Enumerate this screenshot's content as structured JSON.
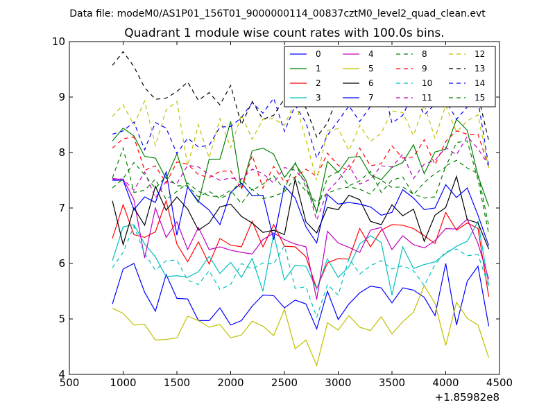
{
  "header": {
    "data_file": "Data file: modeM0/AS1P01_156T01_9000000114_00837cztM0_level2_quad_clean.evt"
  },
  "chart_data": {
    "type": "line",
    "title": "Quadrant 1 module wise count rates with 100.0s bins.",
    "xlabel": "",
    "ylabel": "",
    "x_offset_label": "+1.85982e8",
    "xlim": [
      500,
      4500
    ],
    "ylim": [
      4,
      10
    ],
    "x_ticks": [
      500,
      1000,
      1500,
      2000,
      2500,
      3000,
      3500,
      4000,
      4500
    ],
    "y_ticks": [
      4,
      5,
      6,
      7,
      8,
      9,
      10
    ],
    "legend_position": "top-right",
    "legend_columns": 4,
    "x": [
      900,
      1000,
      1100,
      1200,
      1300,
      1400,
      1500,
      1600,
      1700,
      1800,
      1900,
      2000,
      2100,
      2200,
      2300,
      2400,
      2500,
      2600,
      2700,
      2800,
      2900,
      3000,
      3100,
      3200,
      3300,
      3400,
      3500,
      3600,
      3700,
      3800,
      3900,
      4000,
      4100,
      4200,
      4300,
      4400
    ],
    "series": [
      {
        "name": "0",
        "color": "#0000ff",
        "dash": "solid",
        "values": [
          5.27,
          5.9,
          6.0,
          5.48,
          5.14,
          5.8,
          5.37,
          5.36,
          4.97,
          4.97,
          5.2,
          4.89,
          4.97,
          5.23,
          5.43,
          5.42,
          5.2,
          5.34,
          5.27,
          4.82,
          5.5,
          4.99,
          5.27,
          5.47,
          5.59,
          5.56,
          5.29,
          5.56,
          5.52,
          5.39,
          5.06,
          6.0,
          4.89,
          5.68,
          5.95,
          4.87
        ]
      },
      {
        "name": "1",
        "color": "#008000",
        "dash": "solid",
        "values": [
          8.21,
          8.44,
          8.3,
          7.93,
          7.9,
          7.53,
          7.98,
          7.38,
          7.1,
          7.88,
          7.88,
          8.56,
          7.35,
          8.03,
          8.08,
          7.97,
          7.55,
          7.8,
          7.5,
          6.92,
          7.84,
          7.64,
          7.91,
          7.93,
          7.6,
          7.51,
          7.73,
          7.82,
          8.14,
          7.62,
          8.01,
          8.06,
          8.6,
          8.4,
          7.58,
          7.03
        ]
      },
      {
        "name": "2",
        "color": "#ff0000",
        "dash": "solid",
        "values": [
          6.45,
          7.06,
          6.52,
          6.47,
          6.57,
          7.13,
          6.35,
          6.03,
          6.39,
          5.99,
          6.45,
          6.33,
          6.3,
          6.76,
          6.3,
          6.7,
          6.31,
          6.3,
          6.12,
          5.55,
          6.01,
          6.09,
          6.08,
          6.63,
          6.3,
          6.6,
          6.7,
          6.69,
          6.63,
          6.5,
          6.36,
          6.92,
          6.6,
          6.73,
          6.63,
          5.4
        ]
      },
      {
        "name": "3",
        "color": "#00bfbf",
        "dash": "solid",
        "values": [
          6.05,
          6.66,
          6.7,
          6.35,
          6.12,
          5.76,
          5.78,
          5.75,
          5.85,
          6.13,
          5.82,
          6.02,
          5.75,
          6.09,
          5.5,
          6.53,
          5.7,
          5.97,
          5.95,
          5.54,
          6.08,
          5.75,
          5.94,
          6.35,
          6.5,
          6.38,
          5.43,
          6.3,
          5.91,
          5.98,
          6.03,
          6.18,
          6.31,
          6.4,
          6.76,
          5.6
        ]
      },
      {
        "name": "4",
        "color": "#bf00bf",
        "dash": "solid",
        "values": [
          7.52,
          7.52,
          7.15,
          6.1,
          7.0,
          6.47,
          6.75,
          6.25,
          6.65,
          6.25,
          6.3,
          6.24,
          6.2,
          6.17,
          6.43,
          6.55,
          6.43,
          6.35,
          6.3,
          5.35,
          6.58,
          6.37,
          6.29,
          6.2,
          6.6,
          6.65,
          6.25,
          6.5,
          6.34,
          6.28,
          6.41,
          6.63,
          6.62,
          6.8,
          6.36,
          5.72
        ]
      },
      {
        "name": "5",
        "color": "#bfbf00",
        "dash": "solid",
        "values": [
          5.19,
          5.1,
          4.89,
          4.9,
          4.62,
          4.63,
          4.66,
          5.05,
          4.97,
          4.85,
          4.9,
          4.66,
          4.71,
          4.96,
          4.87,
          4.7,
          5.17,
          4.46,
          4.62,
          4.16,
          4.93,
          4.8,
          5.06,
          4.85,
          4.79,
          5.04,
          4.73,
          4.95,
          5.12,
          5.6,
          5.28,
          4.52,
          5.3,
          5.01,
          4.89,
          4.3
        ]
      },
      {
        "name": "6",
        "color": "#000000",
        "dash": "solid",
        "values": [
          7.13,
          6.34,
          7.0,
          6.69,
          7.39,
          6.96,
          7.2,
          6.98,
          6.6,
          6.73,
          7.02,
          7.07,
          6.85,
          6.73,
          6.56,
          6.6,
          6.52,
          7.52,
          6.75,
          6.55,
          7.01,
          6.97,
          7.23,
          7.15,
          6.76,
          6.7,
          7.06,
          6.86,
          6.98,
          6.4,
          6.87,
          7.01,
          7.57,
          6.79,
          6.73,
          6.26
        ]
      },
      {
        "name": "7",
        "color": "#0000ff",
        "dash": "solid",
        "values": [
          7.5,
          7.5,
          6.97,
          7.2,
          7.1,
          7.65,
          6.51,
          7.38,
          7.12,
          6.96,
          6.7,
          7.28,
          7.45,
          7.22,
          7.23,
          6.43,
          7.4,
          7.18,
          6.66,
          6.37,
          7.24,
          7.07,
          7.1,
          7.07,
          7.02,
          6.87,
          6.92,
          7.33,
          7.18,
          6.97,
          7.0,
          7.42,
          7.19,
          7.36,
          6.87,
          6.32
        ]
      },
      {
        "name": "8",
        "color": "#008000",
        "dash": "dashed",
        "values": [
          7.54,
          8.08,
          7.28,
          7.32,
          7.52,
          7.15,
          7.3,
          7.45,
          7.3,
          7.22,
          7.2,
          7.32,
          7.08,
          7.34,
          7.17,
          7.21,
          7.29,
          7.55,
          7.3,
          7.1,
          7.27,
          7.34,
          7.38,
          7.34,
          7.25,
          7.5,
          7.37,
          7.38,
          7.25,
          7.18,
          7.2,
          7.76,
          7.86,
          7.72,
          7.62,
          6.68
        ]
      },
      {
        "name": "9",
        "color": "#ff0000",
        "dash": "dashed",
        "values": [
          8.08,
          8.25,
          8.28,
          7.68,
          7.76,
          7.45,
          7.83,
          7.79,
          7.6,
          7.55,
          7.66,
          7.67,
          7.33,
          7.95,
          7.36,
          7.75,
          7.47,
          7.56,
          7.7,
          7.57,
          7.99,
          7.77,
          7.67,
          8.08,
          7.76,
          7.8,
          8.12,
          7.9,
          7.92,
          8.23,
          7.78,
          8.2,
          8.39,
          8.33,
          8.33,
          7.73
        ]
      },
      {
        "name": "10",
        "color": "#00bfbf",
        "dash": "dashed",
        "values": [
          5.92,
          6.2,
          6.67,
          6.18,
          5.88,
          6.05,
          6.06,
          5.7,
          5.62,
          5.87,
          5.53,
          5.62,
          6.0,
          5.9,
          6.01,
          5.99,
          6.32,
          5.55,
          5.58,
          5.03,
          5.62,
          5.43,
          6.09,
          5.81,
          5.96,
          6.05,
          5.9,
          5.96,
          5.87,
          5.6,
          5.98,
          6.21,
          6.26,
          6.14,
          6.16,
          5.58
        ]
      },
      {
        "name": "11",
        "color": "#bf00bf",
        "dash": "dashed",
        "values": [
          7.53,
          7.52,
          7.32,
          7.65,
          7.18,
          7.48,
          7.44,
          7.77,
          7.74,
          7.6,
          7.5,
          7.54,
          7.52,
          7.7,
          7.62,
          7.45,
          7.73,
          7.68,
          7.46,
          6.78,
          7.3,
          7.5,
          7.77,
          7.43,
          7.52,
          7.76,
          7.74,
          7.97,
          7.53,
          7.79,
          7.86,
          8.09,
          7.96,
          8.29,
          8.07,
          7.77
        ]
      },
      {
        "name": "12",
        "color": "#bfbf00",
        "dash": "dashed",
        "values": [
          8.65,
          8.86,
          8.5,
          8.93,
          8.13,
          8.77,
          8.92,
          7.76,
          8.5,
          7.9,
          8.61,
          8.09,
          8.68,
          8.24,
          8.6,
          8.61,
          8.49,
          8.92,
          8.22,
          7.5,
          8.4,
          8.43,
          8.03,
          8.49,
          8.2,
          8.35,
          8.75,
          8.72,
          8.31,
          8.86,
          8.26,
          8.85,
          8.37,
          8.57,
          8.68,
          7.71
        ]
      },
      {
        "name": "13",
        "color": "#000000",
        "dash": "dashed",
        "values": [
          9.57,
          9.82,
          9.55,
          9.17,
          8.96,
          8.98,
          9.1,
          9.27,
          8.94,
          9.08,
          8.86,
          9.21,
          8.5,
          8.92,
          8.6,
          8.67,
          8.97,
          9.12,
          8.8,
          8.28,
          8.53,
          9.05,
          9.0,
          9.19,
          9.48,
          9.58,
          9.88,
          9.69,
          9.12,
          9.38,
          9.56,
          9.49,
          9.57,
          9.42,
          9.04,
          8.21
        ]
      },
      {
        "name": "14",
        "color": "#0000ff",
        "dash": "dashed",
        "values": [
          8.33,
          8.39,
          8.55,
          8.05,
          8.54,
          8.44,
          7.98,
          8.26,
          8.1,
          8.13,
          8.46,
          8.47,
          8.63,
          8.9,
          8.71,
          8.98,
          8.38,
          8.85,
          8.54,
          7.9,
          8.31,
          8.57,
          8.84,
          8.56,
          8.83,
          9.34,
          8.53,
          8.67,
          9.08,
          8.68,
          8.87,
          8.94,
          8.6,
          8.82,
          8.94,
          7.75
        ]
      },
      {
        "name": "15",
        "color": "#008000",
        "dash": "dashed",
        "values": [
          7.36,
          7.53,
          7.82,
          7.6,
          7.35,
          7.58,
          7.4,
          7.4,
          7.2,
          7.3,
          7.17,
          7.26,
          7.52,
          7.32,
          7.43,
          7.58,
          7.33,
          7.82,
          7.37,
          6.93,
          7.55,
          7.66,
          7.4,
          7.49,
          7.66,
          7.28,
          7.5,
          7.56,
          7.24,
          7.46,
          7.62,
          7.74,
          8.18,
          8.21,
          7.51,
          6.53
        ]
      }
    ]
  }
}
